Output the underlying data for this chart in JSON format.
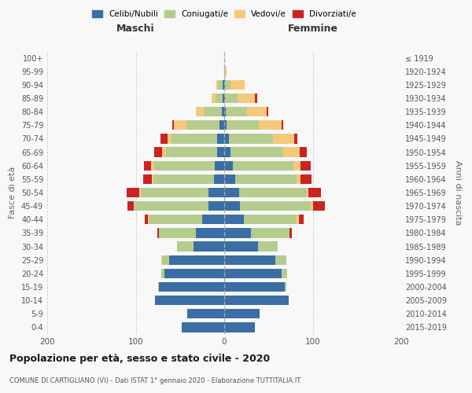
{
  "age_groups": [
    "100+",
    "95-99",
    "90-94",
    "85-89",
    "80-84",
    "75-79",
    "70-74",
    "65-69",
    "60-64",
    "55-59",
    "50-54",
    "45-49",
    "40-44",
    "35-39",
    "30-34",
    "25-29",
    "20-24",
    "15-19",
    "10-14",
    "5-9",
    "0-4"
  ],
  "birth_years": [
    "≤ 1919",
    "1920-1924",
    "1925-1929",
    "1930-1934",
    "1935-1939",
    "1940-1944",
    "1945-1949",
    "1950-1954",
    "1955-1959",
    "1960-1964",
    "1965-1969",
    "1970-1974",
    "1975-1979",
    "1980-1984",
    "1985-1989",
    "1990-1994",
    "1995-1999",
    "2000-2004",
    "2005-2009",
    "2010-2014",
    "2015-2019"
  ],
  "males_celibi": [
    0,
    0,
    2,
    2,
    3,
    5,
    8,
    8,
    11,
    12,
    18,
    18,
    25,
    32,
    35,
    62,
    68,
    74,
    78,
    42,
    48
  ],
  "males_coniugati": [
    0,
    0,
    5,
    8,
    20,
    38,
    52,
    58,
    68,
    68,
    76,
    83,
    60,
    42,
    18,
    8,
    3,
    1,
    0,
    0,
    0
  ],
  "males_vedovi": [
    0,
    0,
    2,
    4,
    9,
    14,
    4,
    4,
    4,
    2,
    2,
    1,
    1,
    0,
    0,
    1,
    0,
    0,
    0,
    0,
    0
  ],
  "males_divorziati": [
    0,
    0,
    0,
    0,
    0,
    2,
    8,
    9,
    8,
    10,
    14,
    7,
    4,
    2,
    0,
    0,
    0,
    0,
    0,
    0,
    0
  ],
  "females_nubili": [
    0,
    0,
    1,
    1,
    2,
    3,
    5,
    7,
    10,
    12,
    17,
    18,
    22,
    30,
    38,
    58,
    65,
    68,
    73,
    40,
    35
  ],
  "females_coniugate": [
    0,
    1,
    6,
    14,
    24,
    36,
    50,
    60,
    68,
    70,
    76,
    80,
    60,
    44,
    22,
    12,
    6,
    2,
    0,
    0,
    0
  ],
  "females_vedove": [
    0,
    2,
    16,
    20,
    22,
    26,
    24,
    18,
    8,
    4,
    2,
    2,
    2,
    0,
    0,
    0,
    0,
    0,
    0,
    0,
    0
  ],
  "females_divorziate": [
    0,
    0,
    0,
    2,
    2,
    2,
    4,
    8,
    12,
    13,
    14,
    14,
    6,
    2,
    0,
    0,
    0,
    0,
    0,
    0,
    0
  ],
  "colors": {
    "celibi": "#3a6ea5",
    "coniugati": "#b5cc8e",
    "vedovi": "#f5c97a",
    "divorziati": "#cc2222"
  },
  "title": "Popolazione per età, sesso e stato civile - 2020",
  "subtitle": "COMUNE DI CARTIGLIANO (VI) - Dati ISTAT 1° gennaio 2020 - Elaborazione TUTTITALIA.IT",
  "header_left": "Maschi",
  "header_right": "Femmine",
  "ylabel_left": "Fasce di età",
  "ylabel_right": "Anni di nascita",
  "xlim": 200,
  "legend_labels": [
    "Celibi/Nubili",
    "Coniugati/e",
    "Vedovi/e",
    "Divorziati/e"
  ],
  "bg_color": "#f8f8f8",
  "grid_color": "#cccccc"
}
